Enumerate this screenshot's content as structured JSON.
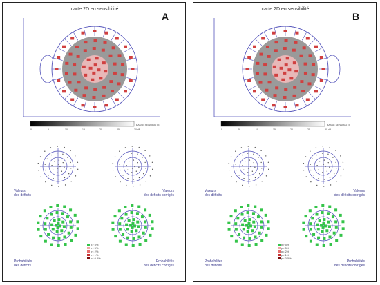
{
  "panels": [
    {
      "letter": "A",
      "title": "carte 2D en sensibilité",
      "ear_side": "left",
      "grayscale_caption": "BASSE SENSIBILITE",
      "grayscale_ticks": [
        "0",
        "5",
        "10",
        "15",
        "20",
        "25",
        "30 dB"
      ],
      "values_label": [
        "Valeurs",
        "des déficits"
      ],
      "values_corrected_label": [
        "Valeurs",
        "des déficits corrigés"
      ],
      "prob_label": [
        "Probabilités",
        "des déficits"
      ],
      "prob_corrected_label": [
        "Probabilités",
        "des déficits corrigés"
      ],
      "legend": [
        {
          "text": "p> 5%",
          "color": "#35c44a"
        },
        {
          "text": "p< 5%",
          "color": "#f2a7a7"
        },
        {
          "text": "p< 2%",
          "color": "#e87070"
        },
        {
          "text": "p< 1%",
          "color": "#c83030"
        },
        {
          "text": "p< 0.5%",
          "color": "#7a0c0c"
        }
      ]
    },
    {
      "letter": "B",
      "title": "carte 2D en sensibilité",
      "ear_side": "right",
      "grayscale_caption": "BASSE SENSIBILITE",
      "grayscale_ticks": [
        "0",
        "5",
        "10",
        "15",
        "20",
        "25",
        "30 dB"
      ],
      "values_label": [
        "Valeurs",
        "des déficits"
      ],
      "values_corrected_label": [
        "Valeurs",
        "des déficits corrigés"
      ],
      "prob_label": [
        "Probabilités",
        "des déficits"
      ],
      "prob_corrected_label": [
        "Probabilités",
        "des déficits corrigés"
      ],
      "legend": [
        {
          "text": "p> 5%",
          "color": "#35c44a"
        },
        {
          "text": "p< 5%",
          "color": "#f2a7a7"
        },
        {
          "text": "p< 2%",
          "color": "#e87070"
        },
        {
          "text": "p< 1%",
          "color": "#c83030"
        },
        {
          "text": "p< 0.5%",
          "color": "#7a0c0c"
        }
      ]
    }
  ],
  "colors": {
    "axis": "#5555bb",
    "map_fill": "#9a9a9a",
    "center_fill": "#e8b8b8",
    "value_box": "#d04040",
    "prob_green": "#35c44a"
  }
}
